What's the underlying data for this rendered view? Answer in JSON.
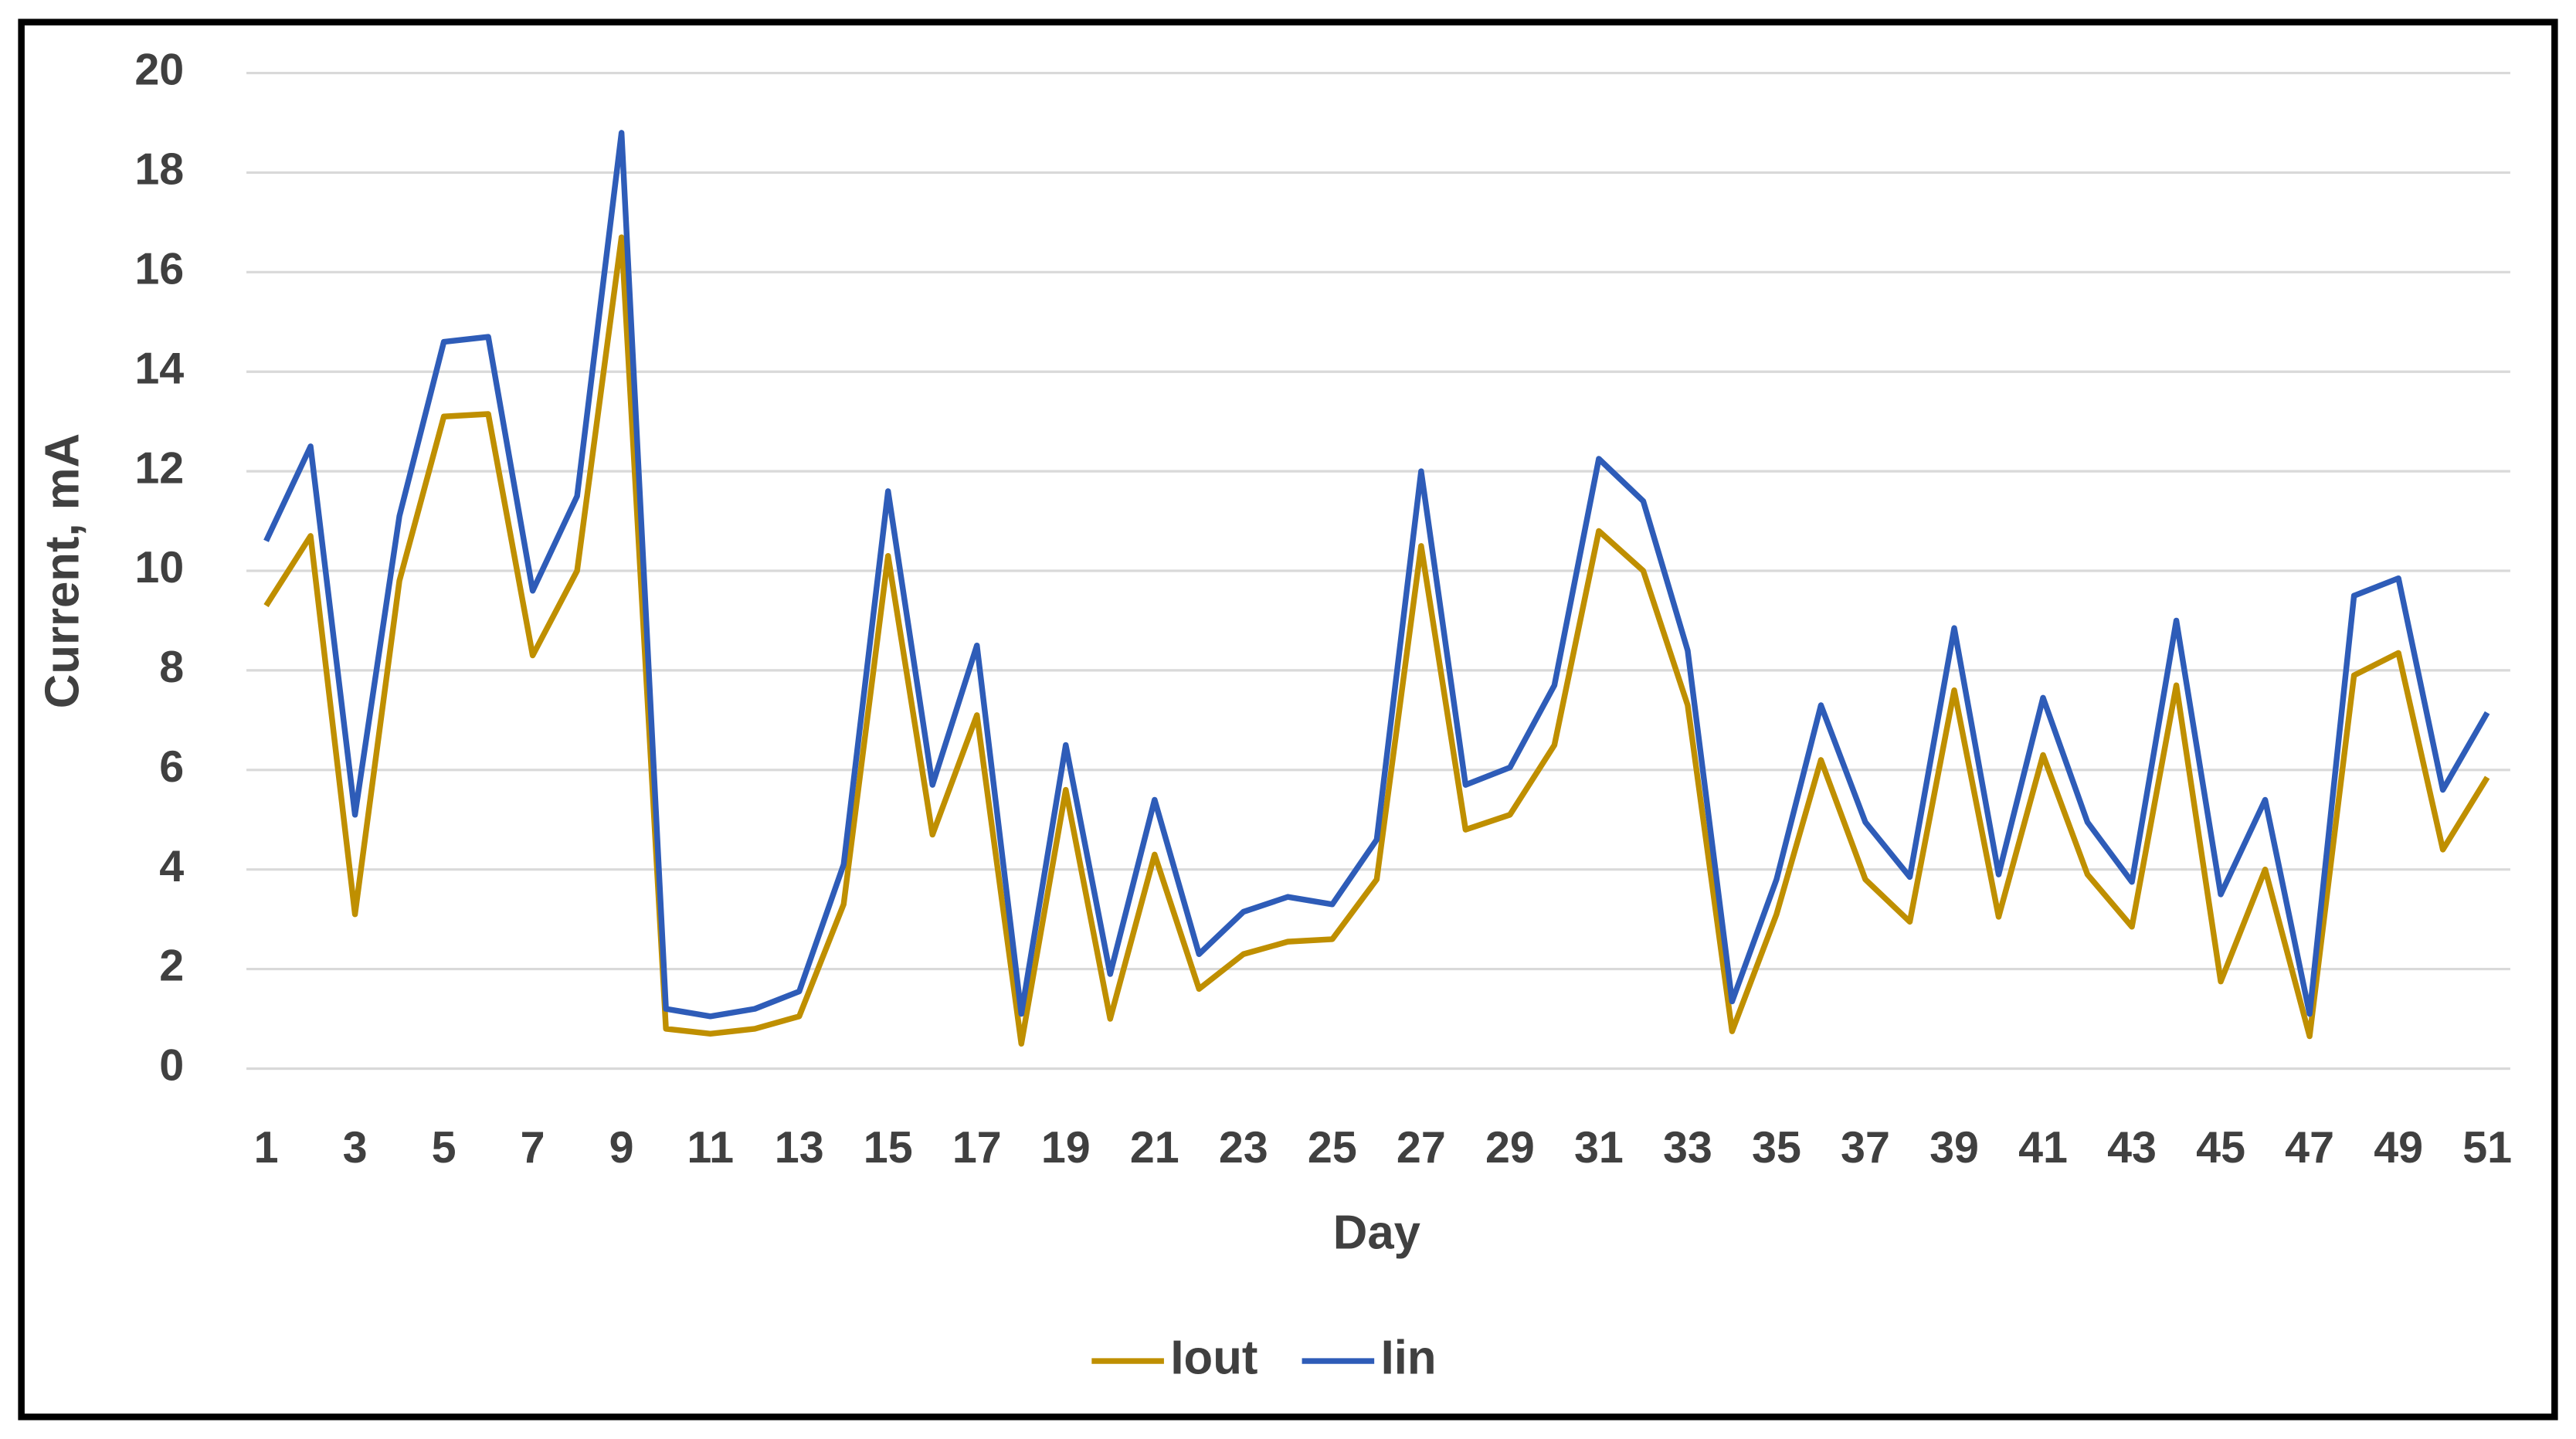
{
  "chart_data": {
    "type": "line",
    "x_label": "Day",
    "y_label": "Current, mA",
    "categories": [
      1,
      null,
      3,
      null,
      5,
      null,
      7,
      null,
      9,
      null,
      11,
      null,
      13,
      null,
      15,
      null,
      17,
      null,
      19,
      null,
      21,
      null,
      23,
      null,
      25,
      null,
      27,
      null,
      29,
      null,
      31,
      null,
      33,
      null,
      35,
      null,
      37,
      null,
      39,
      null,
      41,
      null,
      43,
      null,
      45,
      null,
      47,
      null,
      49,
      null,
      51
    ],
    "series": [
      {
        "name": "Iout",
        "color": "#bf8f00",
        "values": [
          9.3,
          10.7,
          3.1,
          9.8,
          13.1,
          13.15,
          8.3,
          10.0,
          16.7,
          0.8,
          0.7,
          0.8,
          1.05,
          3.3,
          10.3,
          4.7,
          7.1,
          0.5,
          5.6,
          1.0,
          4.3,
          1.6,
          2.3,
          2.55,
          2.6,
          3.8,
          10.5,
          4.8,
          5.1,
          6.5,
          10.8,
          10.0,
          7.3,
          0.75,
          3.1,
          6.2,
          3.8,
          2.95,
          7.6,
          3.05,
          6.3,
          3.9,
          2.85,
          7.7,
          1.75,
          4.0,
          0.65,
          7.9,
          8.35,
          4.4,
          5.85
        ]
      },
      {
        "name": "Iin",
        "color": "#2e5cb8",
        "values": [
          10.6,
          12.5,
          5.1,
          11.1,
          14.6,
          14.7,
          9.6,
          11.5,
          18.8,
          1.2,
          1.05,
          1.2,
          1.55,
          4.1,
          11.6,
          5.7,
          8.5,
          1.1,
          6.5,
          1.9,
          5.4,
          2.3,
          3.15,
          3.45,
          3.3,
          4.6,
          12.0,
          5.7,
          6.05,
          7.7,
          12.25,
          11.4,
          8.4,
          1.35,
          3.8,
          7.3,
          4.95,
          3.85,
          8.85,
          3.9,
          7.45,
          4.95,
          3.75,
          9.0,
          3.5,
          5.4,
          1.1,
          9.5,
          9.85,
          5.6,
          7.15
        ]
      }
    ],
    "ylim": [
      0,
      20
    ],
    "yticks": [
      0,
      2,
      4,
      6,
      8,
      10,
      12,
      14,
      16,
      18,
      20
    ],
    "grid": true,
    "legend": "bottom"
  }
}
